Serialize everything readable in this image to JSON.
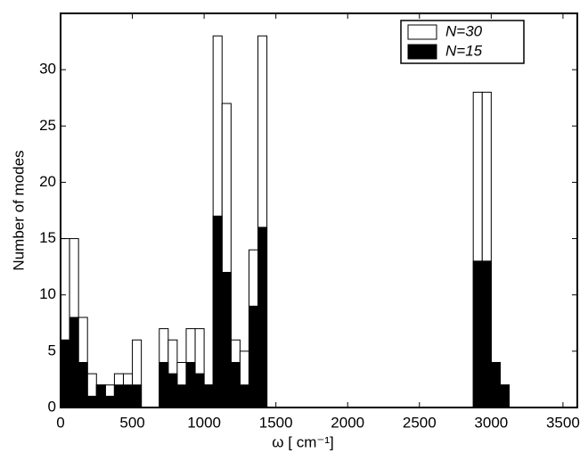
{
  "chart_data": {
    "type": "histogram",
    "xlabel": "ω [ cm⁻¹]",
    "ylabel": "Number of modes",
    "bins": [
      0,
      62.5,
      125,
      187.5,
      250,
      312.5,
      375,
      437.5,
      500,
      562.5,
      625,
      687.5,
      750,
      812.5,
      875,
      937.5,
      1000,
      1062.5,
      1125,
      1187.5,
      1250,
      1312.5,
      1375,
      1437.5,
      1500,
      1562.5,
      1625,
      1687.5,
      1750,
      1812.5,
      1875,
      1937.5,
      2000,
      2062.5,
      2125,
      2187.5,
      2250,
      2312.5,
      2375,
      2437.5,
      2500,
      2562.5,
      2625,
      2687.5,
      2750,
      2812.5,
      2875,
      2937.5,
      3000,
      3062.5,
      3125
    ],
    "series": [
      {
        "name": "N=30",
        "color": "#ffffff",
        "values": [
          15,
          15,
          8,
          3,
          2,
          2,
          3,
          3,
          6,
          0,
          0,
          7,
          6,
          4,
          7,
          7,
          2,
          33,
          27,
          6,
          5,
          14,
          33,
          0,
          0,
          0,
          0,
          0,
          0,
          0,
          0,
          0,
          0,
          0,
          0,
          0,
          0,
          0,
          0,
          0,
          0,
          0,
          0,
          0,
          0,
          0,
          28,
          28,
          4,
          2
        ]
      },
      {
        "name": "N=15",
        "color": "#000000",
        "values": [
          6,
          8,
          4,
          1,
          2,
          1,
          2,
          2,
          2,
          0,
          0,
          4,
          3,
          2,
          4,
          3,
          2,
          17,
          12,
          4,
          2,
          9,
          16,
          0,
          0,
          0,
          0,
          0,
          0,
          0,
          0,
          0,
          0,
          0,
          0,
          0,
          0,
          0,
          0,
          0,
          0,
          0,
          0,
          0,
          0,
          0,
          13,
          13,
          4,
          2
        ]
      }
    ],
    "xlim": [
      0,
      3600
    ],
    "xticks": [
      0,
      500,
      1000,
      1500,
      2000,
      2500,
      3000,
      3500
    ],
    "ylim": [
      0,
      35
    ],
    "yticks": [
      0,
      5,
      10,
      15,
      20,
      25,
      30
    ],
    "legend": "upper right"
  }
}
